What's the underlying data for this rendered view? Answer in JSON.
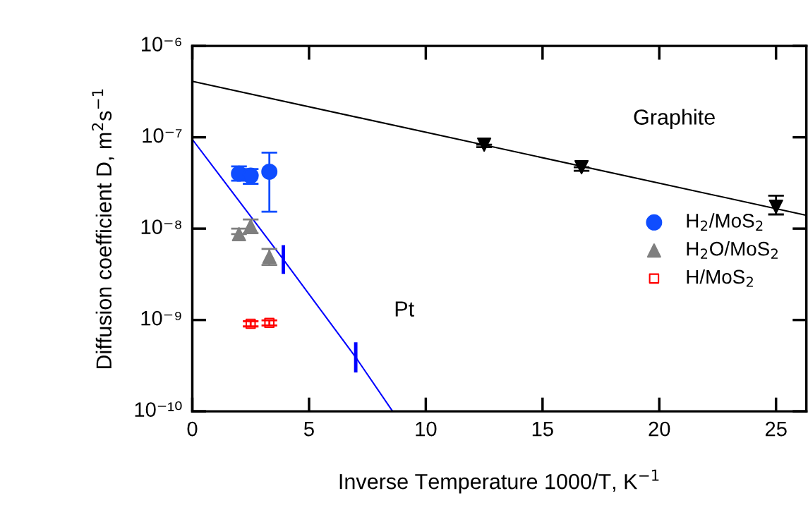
{
  "chart_data": {
    "type": "scatter",
    "xlabel": "Inverse Temperature 1000/T, K$^{−1}$",
    "ylabel": "Diffusion coefficient D, m$^{2}$s$^{−1}$",
    "log": "y",
    "grid": false,
    "legend": "right",
    "xlim": [
      0,
      26.3
    ],
    "xticks": [
      0,
      5,
      10,
      15,
      20,
      25
    ],
    "ylim": [
      1e-10,
      1e-06
    ],
    "yticks": [
      {
        "value": 1e-10,
        "label": "10⁻¹⁰"
      },
      {
        "value": 1e-09,
        "label": "10⁻⁹"
      },
      {
        "value": 1e-08,
        "label": "10⁻⁸"
      },
      {
        "value": 1e-07,
        "label": "10⁻⁷"
      },
      {
        "value": 1e-06,
        "label": "10⁻⁶"
      }
    ],
    "annotations": [
      "Graphite",
      "Pt"
    ],
    "series": [
      {
        "name": "H$_{2}$/MoS$_{2}$",
        "color": "#0f4dff",
        "marker": "circle",
        "x": [
          2.0,
          2.5,
          3.3
        ],
        "values": [
          4e-08,
          3.8e-08,
          4.2e-08
        ],
        "errors": [
          [
            3.35e-08,
            4.8e-08
          ],
          [
            3.1e-08,
            4.5e-08
          ],
          [
            1.53e-08,
            6.8e-08
          ]
        ]
      },
      {
        "name": "H$_{2}$O/MoS$_{2}$",
        "color": "#7f7f7f",
        "marker": "triangle",
        "x": [
          2.0,
          2.5,
          3.3
        ],
        "values": [
          8.7e-09,
          1.07e-08,
          4.9e-09
        ],
        "errors": [
          [
            8.7e-09,
            1e-08
          ],
          [
            8.9e-09,
            1.26e-08
          ],
          [
            4e-09,
            6e-09
          ]
        ]
      },
      {
        "name": "H/MoS$_{2}$",
        "color": "#ff0000",
        "marker": "square",
        "x": [
          2.5,
          3.3
        ],
        "values": [
          9.1e-10,
          9.3e-10
        ],
        "errors": [
          [
            8.5e-10,
            9.7e-10
          ],
          [
            8.7e-10,
            9.9e-10
          ]
        ]
      },
      {
        "color": "#000000",
        "marker": "triangle_down",
        "x": [
          12.5,
          16.67,
          25
        ],
        "values": [
          8.3e-08,
          4.7e-08,
          1.74e-08
        ],
        "errors": [
          [
            7.8e-08,
            8.3e-08
          ],
          [
            4.3e-08,
            4.7e-08
          ],
          [
            1.43e-08,
            2.3e-08
          ]
        ]
      },
      {
        "type": "line",
        "color": "#000000",
        "marker": "none",
        "x": [
          0,
          26.3
        ],
        "values": [
          4.1e-07,
          1.4e-08
        ]
      },
      {
        "type": "line",
        "color": "#0000ff",
        "marker": "none",
        "x": [
          0,
          3.9,
          7.0,
          8.58
        ],
        "values": [
          9.5e-08,
          4.6e-09,
          3.9e-10,
          1e-10
        ],
        "errors": [
          null,
          [
            3.2e-09,
            6.6e-09
          ],
          [
            2.66e-10,
            5.7e-10
          ],
          null
        ]
      }
    ]
  }
}
